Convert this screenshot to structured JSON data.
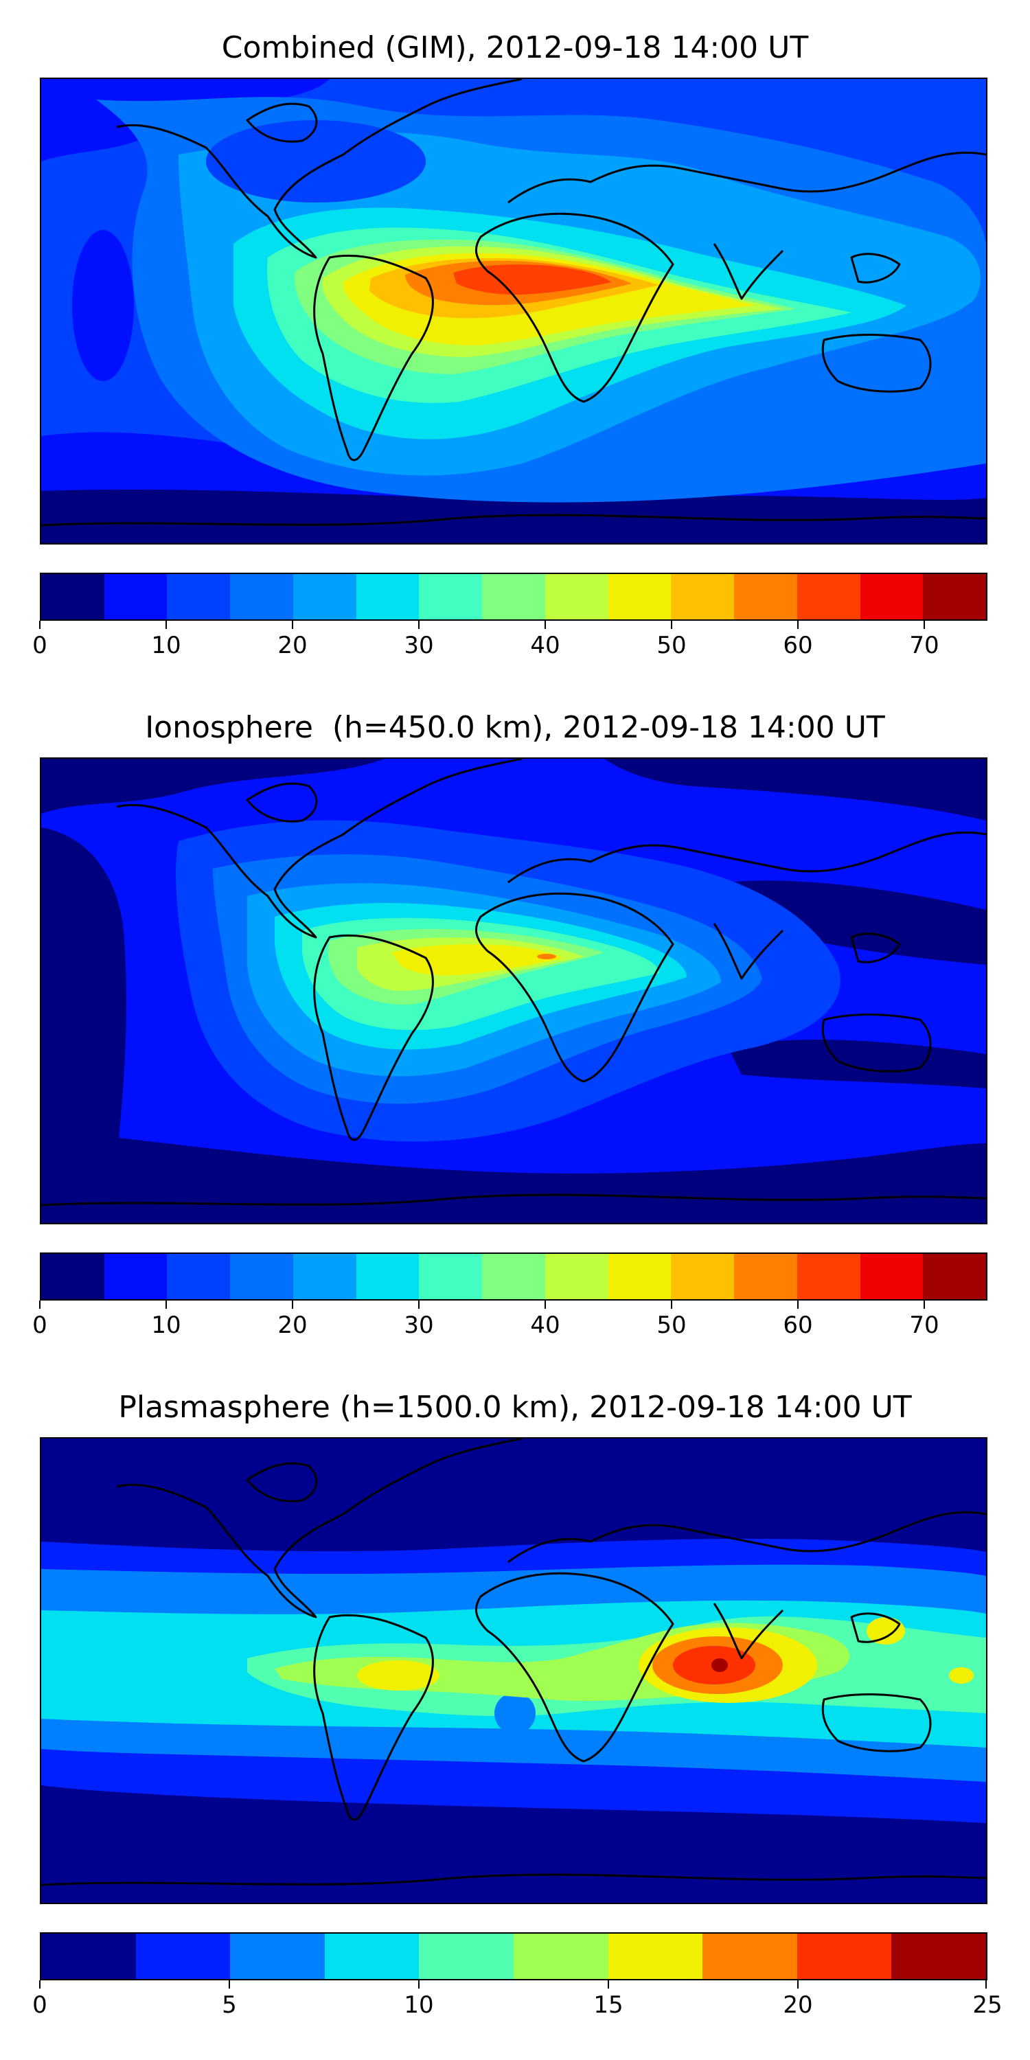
{
  "panels": [
    {
      "title": "Combined (GIM), 2012-09-18 14:00 UT",
      "colorbar": {
        "ticks": [
          "0",
          "10",
          "20",
          "30",
          "40",
          "50",
          "60",
          "70"
        ],
        "tick_values": [
          0,
          10,
          20,
          30,
          40,
          50,
          60,
          70
        ],
        "vmin": 0,
        "vmax": 75,
        "colors": [
          "#00007f",
          "#0010ff",
          "#0040ff",
          "#0070ff",
          "#00a0ff",
          "#00e0f0",
          "#40ffc0",
          "#80ff80",
          "#c0ff40",
          "#f0f000",
          "#ffc000",
          "#ff8000",
          "#ff4000",
          "#f00000",
          "#a00000"
        ]
      }
    },
    {
      "title": "Ionosphere  (h=450.0 km), 2012-09-18 14:00 UT",
      "colorbar": {
        "ticks": [
          "0",
          "10",
          "20",
          "30",
          "40",
          "50",
          "60",
          "70"
        ],
        "tick_values": [
          0,
          10,
          20,
          30,
          40,
          50,
          60,
          70
        ],
        "vmin": 0,
        "vmax": 75,
        "colors": [
          "#00007f",
          "#0010ff",
          "#0040ff",
          "#0070ff",
          "#00a0ff",
          "#00e0f0",
          "#40ffc0",
          "#80ff80",
          "#c0ff40",
          "#f0f000",
          "#ffc000",
          "#ff8000",
          "#ff4000",
          "#f00000",
          "#a00000"
        ]
      }
    },
    {
      "title": "Plasmasphere (h=1500.0 km), 2012-09-18 14:00 UT",
      "colorbar": {
        "ticks": [
          "0",
          "5",
          "10",
          "15",
          "20",
          "25"
        ],
        "tick_values": [
          0,
          5,
          10,
          15,
          20,
          25
        ],
        "vmin": 0,
        "vmax": 25,
        "colors": [
          "#00008f",
          "#0020ff",
          "#0080ff",
          "#00e0f0",
          "#50ffb0",
          "#a0ff50",
          "#f0f000",
          "#ff8000",
          "#ff3000",
          "#a00000"
        ]
      }
    }
  ]
}
